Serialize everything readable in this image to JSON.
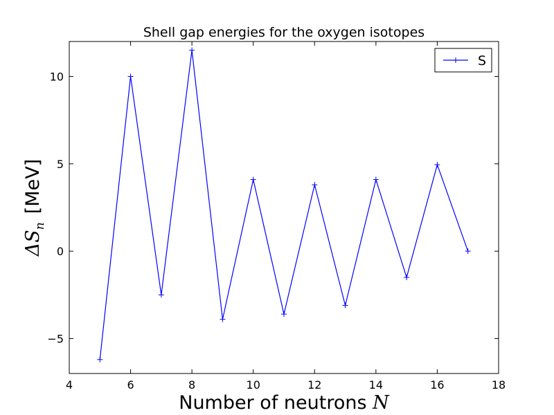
{
  "chart_data": {
    "type": "line",
    "title": "Shell gap energies for the oxygen isotopes",
    "xlabel": "Number of neutrons",
    "xlabel_symbol": "N",
    "ylabel_prefix": "Δ",
    "ylabel_symbol": "S",
    "ylabel_subscript": "n",
    "ylabel_unit": "[MeV]",
    "xlim": [
      4,
      18
    ],
    "ylim": [
      -7,
      12
    ],
    "xticks": [
      4,
      6,
      8,
      10,
      12,
      14,
      16,
      18
    ],
    "yticks": [
      -5,
      0,
      5,
      10
    ],
    "ytick_labels": [
      "−5",
      "0",
      "5",
      "10"
    ],
    "grid": false,
    "legend_position": "top-right",
    "series": [
      {
        "name": "S",
        "color": "#0000ff",
        "marker": "plus",
        "x": [
          5,
          6,
          7,
          8,
          9,
          10,
          11,
          12,
          13,
          14,
          15,
          16,
          17
        ],
        "y": [
          -6.2,
          10.0,
          -2.5,
          11.5,
          -3.9,
          4.1,
          -3.6,
          3.8,
          -3.1,
          4.1,
          -1.5,
          4.95,
          0.0
        ]
      }
    ]
  }
}
